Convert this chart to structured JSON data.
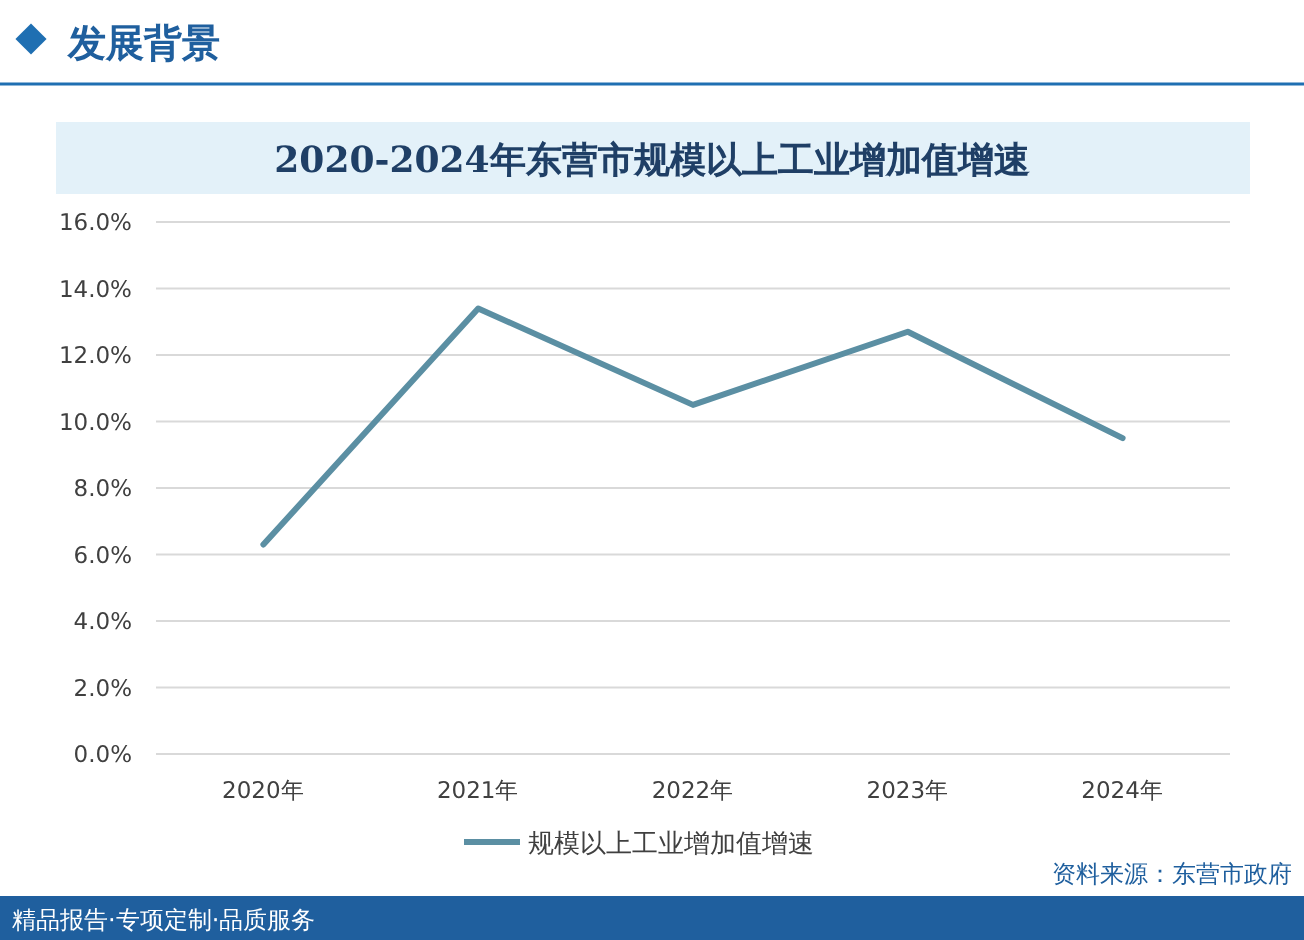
{
  "chart_data": {
    "type": "line",
    "title": "2020-2024年东营市规模以上工业增加值增速",
    "categories": [
      "2020年",
      "2021年",
      "2022年",
      "2023年",
      "2024年"
    ],
    "series": [
      {
        "name": "规模以上工业增加值增速",
        "color": "#5b8fa3",
        "values": [
          6.3,
          13.4,
          10.5,
          12.7,
          9.5
        ]
      }
    ],
    "ylim": [
      0,
      16
    ],
    "yticks": [
      {
        "value": 0,
        "label": "0.0%"
      },
      {
        "value": 2,
        "label": "2.0%"
      },
      {
        "value": 4,
        "label": "4.0%"
      },
      {
        "value": 6,
        "label": "6.0%"
      },
      {
        "value": 8,
        "label": "8.0%"
      },
      {
        "value": 10,
        "label": "10.0%"
      },
      {
        "value": 12,
        "label": "12.0%"
      },
      {
        "value": 14,
        "label": "14.0%"
      },
      {
        "value": 16,
        "label": "16.0%"
      }
    ],
    "grid": "y",
    "legend": "bottom",
    "marker": "none",
    "line_style": "solid",
    "annotations": [
      "发展背景",
      "精品报告·专项定制·品质服务",
      "资料来源：东营市政府"
    ]
  }
}
